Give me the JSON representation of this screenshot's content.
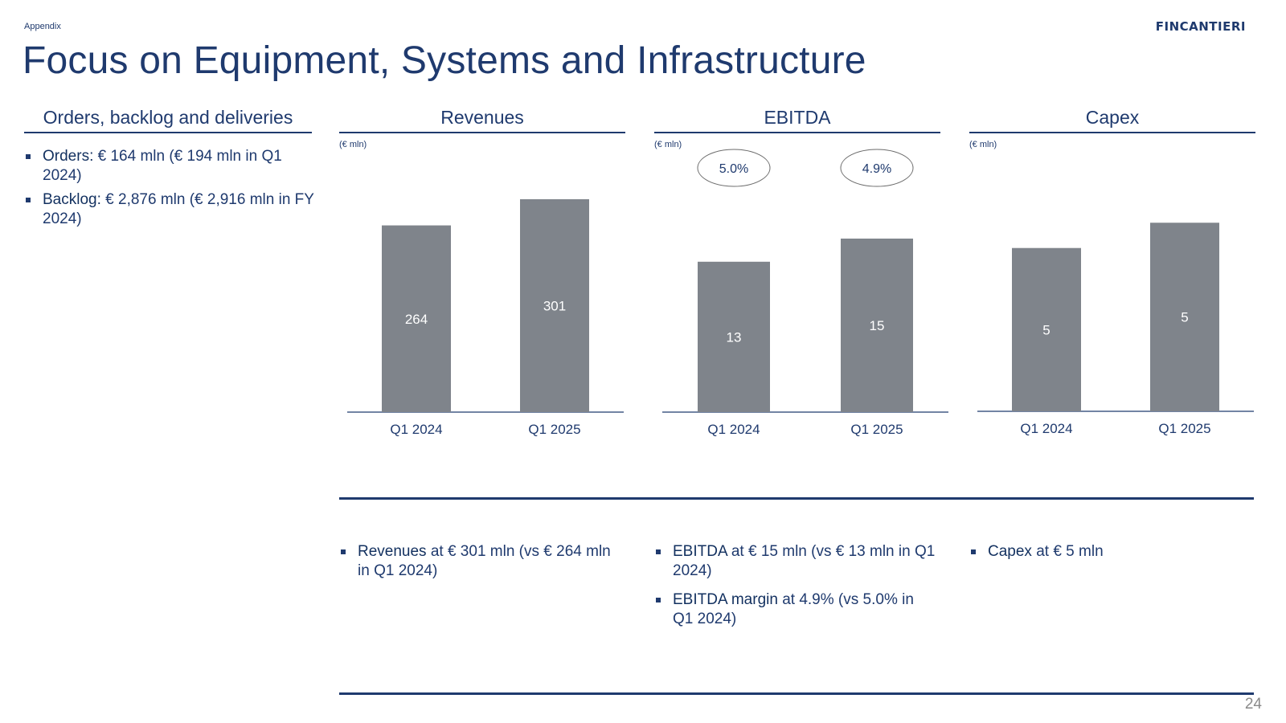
{
  "header": {
    "section": "Appendix",
    "logo": "FINCANTIERI",
    "title": "Focus on Equipment, Systems and Infrastructure"
  },
  "left_panel": {
    "heading": "Orders, backlog and deliveries",
    "bullets": [
      {
        "keyword": "Orders:",
        "text": " € 164 mln (€ 194 mln in Q1 2024)"
      },
      {
        "keyword": "Backlog:",
        "text": " € 2,876 mln (€ 2,916 mln in FY 2024)"
      }
    ]
  },
  "columns": [
    {
      "heading": "Revenues",
      "unit": "(€ mln)"
    },
    {
      "heading": "EBITDA",
      "unit": "(€ mln)"
    },
    {
      "heading": "Capex",
      "unit": "(€ mln)"
    }
  ],
  "chart_data": [
    {
      "type": "bar",
      "title": "Revenues",
      "unit": "(€ mln)",
      "categories": [
        "Q1 2024",
        "Q1 2025"
      ],
      "values": [
        264,
        301
      ],
      "labels": [
        "264",
        "301"
      ]
    },
    {
      "type": "bar",
      "title": "EBITDA",
      "unit": "(€ mln)",
      "categories": [
        "Q1 2024",
        "Q1 2025"
      ],
      "values": [
        13,
        15
      ],
      "labels": [
        "13",
        "15"
      ],
      "annotations": [
        "5.0%",
        "4.9%"
      ]
    },
    {
      "type": "bar",
      "title": "Capex",
      "unit": "(€ mln)",
      "categories": [
        "Q1 2024",
        "Q1 2025"
      ],
      "values": [
        5,
        5
      ],
      "labels": [
        "5",
        "5"
      ],
      "bar_fractions": [
        0.84,
        0.97
      ]
    }
  ],
  "commentary": {
    "revenues": [
      {
        "keyword": "Revenues",
        "text": " at € 301 mln (vs € 264 mln in Q1 2024)"
      }
    ],
    "ebitda": [
      {
        "keyword": "EBITDA",
        "text": " at € 15 mln (vs € 13 mln in Q1 2024)"
      },
      {
        "keyword": "EBITDA margin",
        "text": " at 4.9% (vs 5.0% in Q1 2024)"
      }
    ],
    "capex": [
      {
        "keyword": "Capex",
        "text": " at € 5 mln"
      }
    ]
  },
  "footer": {
    "page_number": "24"
  },
  "colors": {
    "navy": "#1f3a6e",
    "bar": "#7f848b"
  }
}
